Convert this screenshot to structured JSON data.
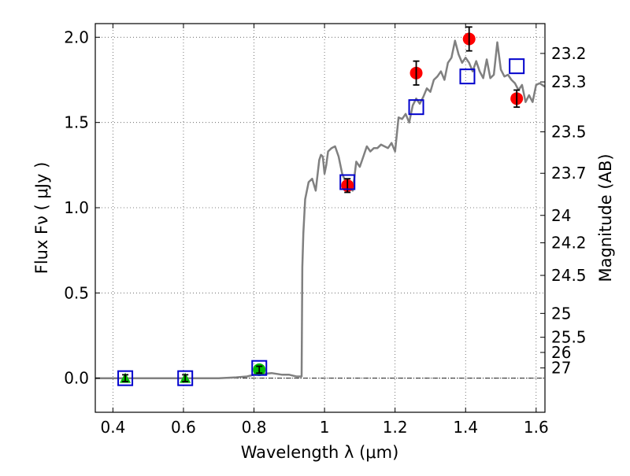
{
  "chart_data": {
    "type": "scatter",
    "xlabel": "Wavelength  λ (μm)",
    "ylabel": "Flux  Fν  ( μJy )",
    "y2label": "Magnitude (AB)",
    "xlim": [
      0.35,
      1.625
    ],
    "ylim": [
      -0.2,
      2.08
    ],
    "grid": true,
    "x_ticks": [
      0.4,
      0.6,
      0.8,
      1.0,
      1.2,
      1.4,
      1.6
    ],
    "x_tick_labels": [
      "0.4",
      "0.6",
      "0.8",
      "1",
      "1.2",
      "1.4",
      "1.6"
    ],
    "y_ticks": [
      0.0,
      0.5,
      1.0,
      1.5,
      2.0
    ],
    "y_tick_labels": [
      "0.0",
      "0.5",
      "1.0",
      "1.5",
      "2.0"
    ],
    "y2_tick_labels": [
      "23.2",
      "23.3",
      "23.5",
      "23.7",
      "24",
      "24.2",
      "24.5",
      "25",
      "25.5",
      "26",
      "27"
    ],
    "y2_tick_flux": [
      1.905,
      1.738,
      1.445,
      1.202,
      0.955,
      0.794,
      0.603,
      0.38,
      0.24,
      0.151,
      0.06
    ],
    "model_spectrum": {
      "color": "#808080",
      "x": [
        0.35,
        0.5,
        0.6,
        0.7,
        0.75,
        0.78,
        0.8,
        0.85,
        0.88,
        0.9,
        0.92,
        0.935,
        0.937,
        0.94,
        0.945,
        0.955,
        0.965,
        0.975,
        0.985,
        0.99,
        0.995,
        1.0,
        1.005,
        1.01,
        1.02,
        1.03,
        1.04,
        1.05,
        1.06,
        1.07,
        1.08,
        1.09,
        1.1,
        1.11,
        1.12,
        1.13,
        1.14,
        1.15,
        1.16,
        1.17,
        1.18,
        1.19,
        1.2,
        1.21,
        1.22,
        1.23,
        1.24,
        1.25,
        1.26,
        1.27,
        1.28,
        1.29,
        1.3,
        1.31,
        1.32,
        1.33,
        1.34,
        1.35,
        1.36,
        1.37,
        1.38,
        1.39,
        1.4,
        1.41,
        1.42,
        1.43,
        1.44,
        1.45,
        1.46,
        1.47,
        1.48,
        1.49,
        1.5,
        1.51,
        1.52,
        1.53,
        1.54,
        1.55,
        1.56,
        1.57,
        1.58,
        1.59,
        1.6,
        1.61,
        1.625
      ],
      "y": [
        0.0,
        0.0,
        0.0,
        0.0,
        0.005,
        0.01,
        0.02,
        0.03,
        0.02,
        0.02,
        0.01,
        0.01,
        0.65,
        0.85,
        1.05,
        1.15,
        1.17,
        1.1,
        1.28,
        1.31,
        1.3,
        1.2,
        1.25,
        1.33,
        1.35,
        1.36,
        1.3,
        1.2,
        1.15,
        1.12,
        1.1,
        1.27,
        1.24,
        1.3,
        1.36,
        1.33,
        1.35,
        1.35,
        1.37,
        1.36,
        1.35,
        1.38,
        1.33,
        1.53,
        1.52,
        1.55,
        1.5,
        1.6,
        1.64,
        1.61,
        1.65,
        1.7,
        1.68,
        1.75,
        1.77,
        1.8,
        1.75,
        1.85,
        1.88,
        1.98,
        1.9,
        1.85,
        1.88,
        1.85,
        1.8,
        1.86,
        1.8,
        1.76,
        1.87,
        1.76,
        1.78,
        1.97,
        1.81,
        1.77,
        1.78,
        1.75,
        1.73,
        1.69,
        1.72,
        1.62,
        1.66,
        1.62,
        1.72,
        1.73,
        1.71
      ]
    },
    "series": [
      {
        "marker": "circle",
        "color": "#ff0000",
        "x": [
          1.065,
          1.26,
          1.41,
          1.545
        ],
        "y": [
          1.13,
          1.79,
          1.99,
          1.64
        ],
        "err": [
          0.04,
          0.07,
          0.07,
          0.05
        ]
      },
      {
        "marker": "circle",
        "color": "#00bb00",
        "x": [
          0.815
        ],
        "y": [
          0.05
        ],
        "err": [
          0.02
        ]
      },
      {
        "marker": "triangle",
        "color": "#00bb00",
        "x": [
          0.435,
          0.605
        ],
        "y": [
          0.0,
          0.0
        ],
        "err": [
          0.02,
          0.02
        ]
      },
      {
        "marker": "open-square",
        "color": "#0000cc",
        "x": [
          0.435,
          0.605,
          0.815,
          1.065,
          1.26,
          1.405,
          1.545
        ],
        "y": [
          0.0,
          0.0,
          0.06,
          1.15,
          1.59,
          1.77,
          1.83
        ]
      }
    ]
  }
}
